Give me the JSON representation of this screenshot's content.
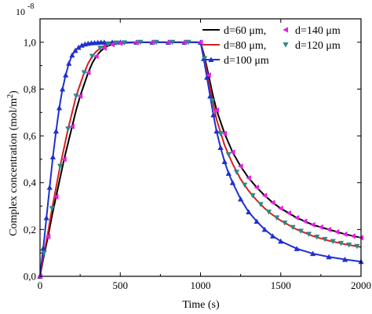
{
  "chart_data": {
    "type": "line",
    "xlabel": "Time (s)",
    "ylabel": "Complex concentration (mol/m",
    "ylabel_sup": "2",
    "ylabel_close": ")",
    "y_exponent": "10",
    "y_exponent_power": "-8",
    "xlim": [
      0,
      2000
    ],
    "ylim": [
      0,
      1.1
    ],
    "xticks": [
      0,
      500,
      1000,
      1500,
      2000
    ],
    "xtick_labels": [
      "0",
      "500",
      "1000",
      "1500",
      "2000"
    ],
    "yticks": [
      0,
      0.2,
      0.4,
      0.6,
      0.8,
      1.0
    ],
    "ytick_labels": [
      "0,0",
      "0,2",
      "0,4",
      "0,6",
      "0,8",
      "1,0"
    ],
    "legend_position": "top-right",
    "series": [
      {
        "name": "d=60 μm,",
        "style": "line",
        "color": "#000000",
        "x": [
          0,
          25,
          50,
          75,
          100,
          125,
          150,
          175,
          200,
          225,
          250,
          275,
          300,
          325,
          350,
          375,
          400,
          425,
          450,
          475,
          500,
          525,
          550,
          600,
          700,
          800,
          900,
          1000,
          1025,
          1050,
          1075,
          1100,
          1150,
          1200,
          1250,
          1300,
          1350,
          1400,
          1450,
          1500,
          1600,
          1700,
          1800,
          1900,
          2000
        ],
        "y": [
          0,
          0.09,
          0.17,
          0.26,
          0.34,
          0.42,
          0.5,
          0.57,
          0.64,
          0.71,
          0.77,
          0.82,
          0.87,
          0.91,
          0.94,
          0.96,
          0.975,
          0.985,
          0.99,
          0.994,
          0.996,
          0.997,
          0.998,
          0.999,
          1.0,
          1.0,
          1.0,
          1.0,
          0.94,
          0.86,
          0.78,
          0.71,
          0.61,
          0.53,
          0.47,
          0.42,
          0.38,
          0.345,
          0.315,
          0.29,
          0.25,
          0.22,
          0.2,
          0.18,
          0.165
        ]
      },
      {
        "name": "d=80 μm,",
        "style": "line",
        "color": "#d42020",
        "x": [
          0,
          25,
          50,
          75,
          100,
          125,
          150,
          175,
          200,
          225,
          250,
          275,
          300,
          325,
          350,
          375,
          400,
          425,
          450,
          475,
          500,
          550,
          600,
          700,
          800,
          900,
          1000,
          1025,
          1050,
          1075,
          1100,
          1150,
          1200,
          1250,
          1300,
          1350,
          1400,
          1450,
          1500,
          1600,
          1700,
          1800,
          1900,
          2000
        ],
        "y": [
          0,
          0.1,
          0.19,
          0.29,
          0.38,
          0.47,
          0.55,
          0.63,
          0.7,
          0.77,
          0.82,
          0.87,
          0.91,
          0.94,
          0.96,
          0.975,
          0.985,
          0.991,
          0.995,
          0.997,
          0.998,
          0.999,
          1.0,
          1.0,
          1.0,
          1.0,
          1.0,
          0.93,
          0.84,
          0.75,
          0.67,
          0.56,
          0.48,
          0.415,
          0.365,
          0.325,
          0.29,
          0.262,
          0.238,
          0.2,
          0.172,
          0.152,
          0.137,
          0.125
        ]
      },
      {
        "name": "d=100 μm",
        "style": "line+triangle-up",
        "color": "#1f2fd0",
        "x": [
          0,
          20,
          40,
          60,
          80,
          100,
          120,
          140,
          160,
          180,
          200,
          220,
          240,
          260,
          280,
          300,
          320,
          340,
          360,
          380,
          400,
          450,
          500,
          600,
          700,
          800,
          900,
          1000,
          1020,
          1040,
          1060,
          1080,
          1100,
          1125,
          1150,
          1175,
          1200,
          1250,
          1300,
          1350,
          1400,
          1450,
          1500,
          1600,
          1700,
          1800,
          1900,
          2000
        ],
        "y": [
          0,
          0.12,
          0.25,
          0.38,
          0.51,
          0.62,
          0.72,
          0.8,
          0.86,
          0.91,
          0.945,
          0.965,
          0.978,
          0.987,
          0.992,
          0.995,
          0.997,
          0.998,
          0.999,
          1.0,
          1.0,
          1.0,
          1.0,
          1.0,
          1.0,
          1.0,
          1.0,
          1.0,
          0.93,
          0.85,
          0.77,
          0.69,
          0.62,
          0.55,
          0.49,
          0.44,
          0.4,
          0.33,
          0.275,
          0.235,
          0.2,
          0.172,
          0.15,
          0.118,
          0.097,
          0.083,
          0.072,
          0.063
        ]
      },
      {
        "name": "d=140 μm",
        "style": "triangle-left",
        "color": "#e020e0",
        "x": [
          0,
          50,
          100,
          150,
          200,
          250,
          300,
          350,
          400,
          450,
          500,
          600,
          700,
          800,
          900,
          1000,
          1050,
          1100,
          1150,
          1200,
          1250,
          1300,
          1350,
          1400,
          1450,
          1500,
          1550,
          1600,
          1650,
          1700,
          1750,
          1800,
          1850,
          1900,
          1950,
          2000
        ],
        "y": [
          0,
          0.17,
          0.34,
          0.5,
          0.64,
          0.77,
          0.87,
          0.94,
          0.975,
          0.99,
          0.996,
          0.999,
          1.0,
          1.0,
          1.0,
          1.0,
          0.86,
          0.71,
          0.61,
          0.53,
          0.47,
          0.42,
          0.38,
          0.345,
          0.315,
          0.29,
          0.27,
          0.25,
          0.235,
          0.22,
          0.21,
          0.2,
          0.19,
          0.18,
          0.172,
          0.165
        ]
      },
      {
        "name": "d=120 μm",
        "style": "triangle-down",
        "color": "#2a8a84",
        "x": [
          25,
          75,
          125,
          175,
          225,
          275,
          325,
          375,
          425,
          475,
          525,
          625,
          725,
          825,
          925,
          1025,
          1075,
          1125,
          1175,
          1225,
          1275,
          1325,
          1375,
          1425,
          1475,
          1525,
          1575,
          1625,
          1675,
          1725,
          1775,
          1825,
          1875,
          1925,
          1975
        ],
        "y": [
          0.1,
          0.29,
          0.47,
          0.63,
          0.77,
          0.87,
          0.94,
          0.975,
          0.991,
          0.997,
          0.998,
          1.0,
          1.0,
          1.0,
          1.0,
          0.93,
          0.75,
          0.61,
          0.52,
          0.445,
          0.39,
          0.345,
          0.307,
          0.275,
          0.25,
          0.228,
          0.209,
          0.193,
          0.18,
          0.168,
          0.158,
          0.149,
          0.141,
          0.134,
          0.128
        ]
      }
    ]
  }
}
